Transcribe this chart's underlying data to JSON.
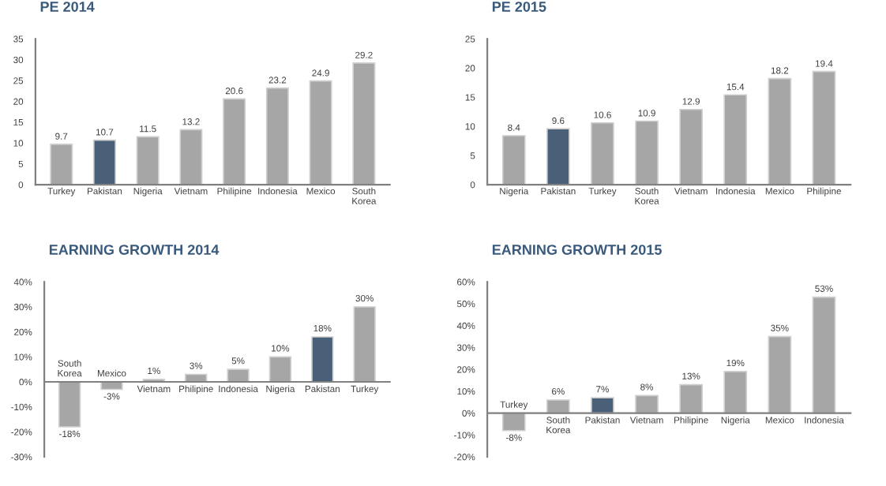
{
  "chart_data": [
    {
      "type": "bar",
      "title": "PE 2014",
      "categories": [
        "Turkey",
        "Pakistan",
        "Nigeria",
        "Vietnam",
        "Philipine",
        "Indonesia",
        "Mexico",
        "South\nKorea"
      ],
      "values": [
        9.7,
        10.7,
        11.5,
        13.2,
        20.6,
        23.2,
        24.9,
        29.2
      ],
      "colors": [
        "#a6a6a6",
        "#4a6079",
        "#a6a6a6",
        "#a6a6a6",
        "#a6a6a6",
        "#a6a6a6",
        "#a6a6a6",
        "#a6a6a6"
      ],
      "ylim": [
        0,
        35
      ],
      "yticks": [
        0,
        5,
        10,
        15,
        20,
        25,
        30,
        35
      ],
      "data_labels": true
    },
    {
      "type": "bar",
      "title": "PE 2015",
      "categories": [
        "Nigeria",
        "Pakistan",
        "Turkey",
        "South\nKorea",
        "Vietnam",
        "Indonesia",
        "Mexico",
        "Philipine"
      ],
      "values": [
        8.4,
        9.6,
        10.6,
        10.9,
        12.9,
        15.4,
        18.2,
        19.4
      ],
      "colors": [
        "#a6a6a6",
        "#4a6079",
        "#a6a6a6",
        "#a6a6a6",
        "#a6a6a6",
        "#a6a6a6",
        "#a6a6a6",
        "#a6a6a6"
      ],
      "ylim": [
        0,
        25
      ],
      "yticks": [
        0,
        5,
        10,
        15,
        20,
        25
      ],
      "data_labels": true
    },
    {
      "type": "bar",
      "title": "EARNING GROWTH 2014",
      "categories": [
        "South\nKorea",
        "Mexico",
        "Vietnam",
        "Philipine",
        "Indonesia",
        "Nigeria",
        "Pakistan",
        "Turkey"
      ],
      "values": [
        -18,
        -3,
        1,
        3,
        5,
        10,
        18,
        30
      ],
      "value_labels": [
        "-18%",
        "-3%",
        "1%",
        "3%",
        "5%",
        "10%",
        "18%",
        "30%"
      ],
      "colors": [
        "#a6a6a6",
        "#a6a6a6",
        "#a6a6a6",
        "#a6a6a6",
        "#a6a6a6",
        "#a6a6a6",
        "#4a6079",
        "#a6a6a6"
      ],
      "ylim": [
        -30,
        40
      ],
      "yticks": [
        {
          "value": -30,
          "label": "-30%"
        },
        {
          "value": -20,
          "label": "-20%"
        },
        {
          "value": -10,
          "label": "-10%"
        },
        {
          "value": 0,
          "label": "0%"
        },
        {
          "value": 10,
          "label": "10%"
        },
        {
          "value": 20,
          "label": "20%"
        },
        {
          "value": 30,
          "label": "30%"
        },
        {
          "value": 40,
          "label": "40%"
        }
      ]
    },
    {
      "type": "bar",
      "title": "EARNING GROWTH 2015",
      "categories": [
        "Turkey",
        "South\nKorea",
        "Pakistan",
        "Vietnam",
        "Philipine",
        "Nigeria",
        "Mexico",
        "Indonesia"
      ],
      "values": [
        -8,
        6,
        7,
        8,
        13,
        19,
        35,
        53
      ],
      "value_labels": [
        "-8%",
        "6%",
        "7%",
        "8%",
        "13%",
        "19%",
        "35%",
        "53%"
      ],
      "colors": [
        "#a6a6a6",
        "#a6a6a6",
        "#4a6079",
        "#a6a6a6",
        "#a6a6a6",
        "#a6a6a6",
        "#a6a6a6",
        "#a6a6a6"
      ],
      "ylim": [
        -20,
        60
      ],
      "yticks": [
        {
          "value": -20,
          "label": "-20%"
        },
        {
          "value": -10,
          "label": "-10%"
        },
        {
          "value": 0,
          "label": "0%"
        },
        {
          "value": 10,
          "label": "10%"
        },
        {
          "value": 20,
          "label": "20%"
        },
        {
          "value": 30,
          "label": "30%"
        },
        {
          "value": 40,
          "label": "40%"
        },
        {
          "value": 50,
          "label": "50%"
        },
        {
          "value": 60,
          "label": "60%"
        }
      ]
    }
  ]
}
